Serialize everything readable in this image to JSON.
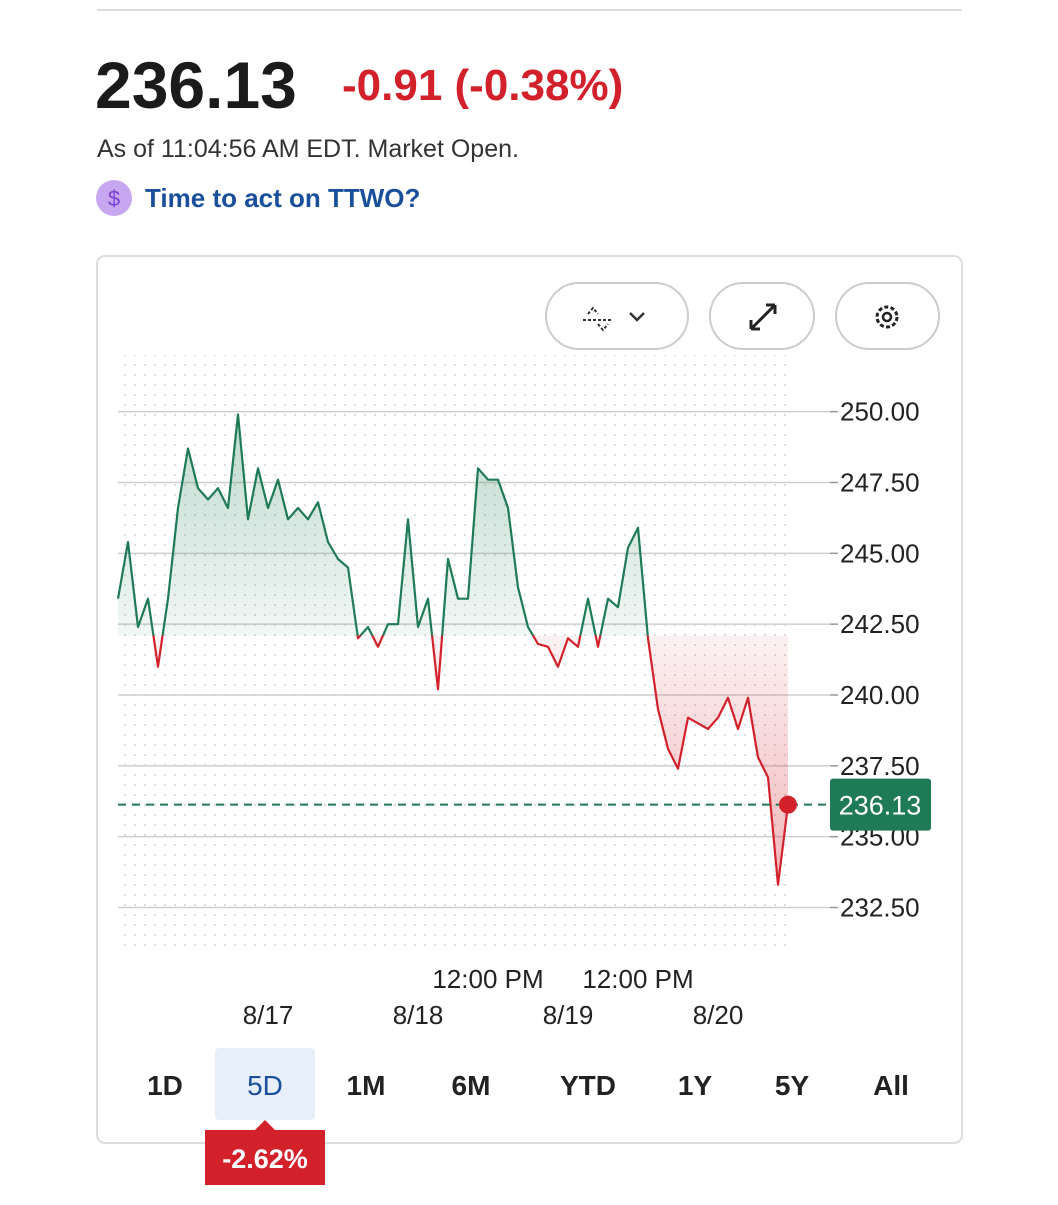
{
  "header": {
    "price": "236.13",
    "change": "-0.91 (-0.38%)",
    "timestamp": "As of 11:04:56 AM EDT. Market Open.",
    "prompt_icon": "$",
    "prompt": "Time to act on TTWO?"
  },
  "range_tabs": [
    "1D",
    "5D",
    "1M",
    "6M",
    "YTD",
    "1Y",
    "5Y",
    "All"
  ],
  "selected_tab": 1,
  "period_change": "-2.62%",
  "chart_data": {
    "type": "line",
    "values": [
      243.4,
      245.4,
      242.4,
      243.4,
      241.0,
      243.4,
      246.6,
      248.7,
      247.3,
      246.9,
      247.3,
      246.6,
      249.9,
      246.2,
      248.0,
      246.6,
      247.6,
      246.2,
      246.6,
      246.2,
      246.8,
      245.4,
      244.8,
      244.5,
      242.0,
      242.4,
      241.7,
      242.5,
      242.5,
      246.2,
      242.4,
      243.4,
      240.2,
      244.8,
      243.4,
      243.4,
      248.0,
      247.6,
      247.6,
      246.6,
      243.8,
      242.4,
      241.8,
      241.7,
      241.0,
      242.0,
      241.7,
      243.4,
      241.7,
      243.4,
      243.1,
      245.2,
      245.9,
      242.0,
      239.5,
      238.1,
      237.4,
      239.2,
      239.0,
      238.8,
      239.2,
      239.9,
      238.8,
      239.9,
      237.8,
      237.1,
      233.3,
      236.13
    ],
    "baseline": 242.1,
    "current_price": 236.13,
    "current_price_label": "236.13",
    "up_color": "#1e7b56",
    "down_color": "#d3212c",
    "xlim": [
      0,
      67
    ],
    "xticks": [
      {
        "value": 37,
        "label": "12:00 PM"
      },
      {
        "value": 52,
        "label": "12:00 PM"
      }
    ],
    "xticks_dates": [
      {
        "value": 15,
        "label": "8/17"
      },
      {
        "value": 30,
        "label": "8/18"
      },
      {
        "value": 45,
        "label": "8/19"
      },
      {
        "value": 60,
        "label": "8/20"
      }
    ],
    "ylim": [
      231,
      252
    ],
    "yticks": [
      {
        "value": 232.5,
        "label": "232.50"
      },
      {
        "value": 235,
        "label": "235.00"
      },
      {
        "value": 237.5,
        "label": "237.50"
      },
      {
        "value": 240,
        "label": "240.00"
      },
      {
        "value": 242.5,
        "label": "242.50"
      },
      {
        "value": 245,
        "label": "245.00"
      },
      {
        "value": 247.5,
        "label": "247.50"
      },
      {
        "value": 250,
        "label": "250.00"
      }
    ],
    "grid": true
  }
}
